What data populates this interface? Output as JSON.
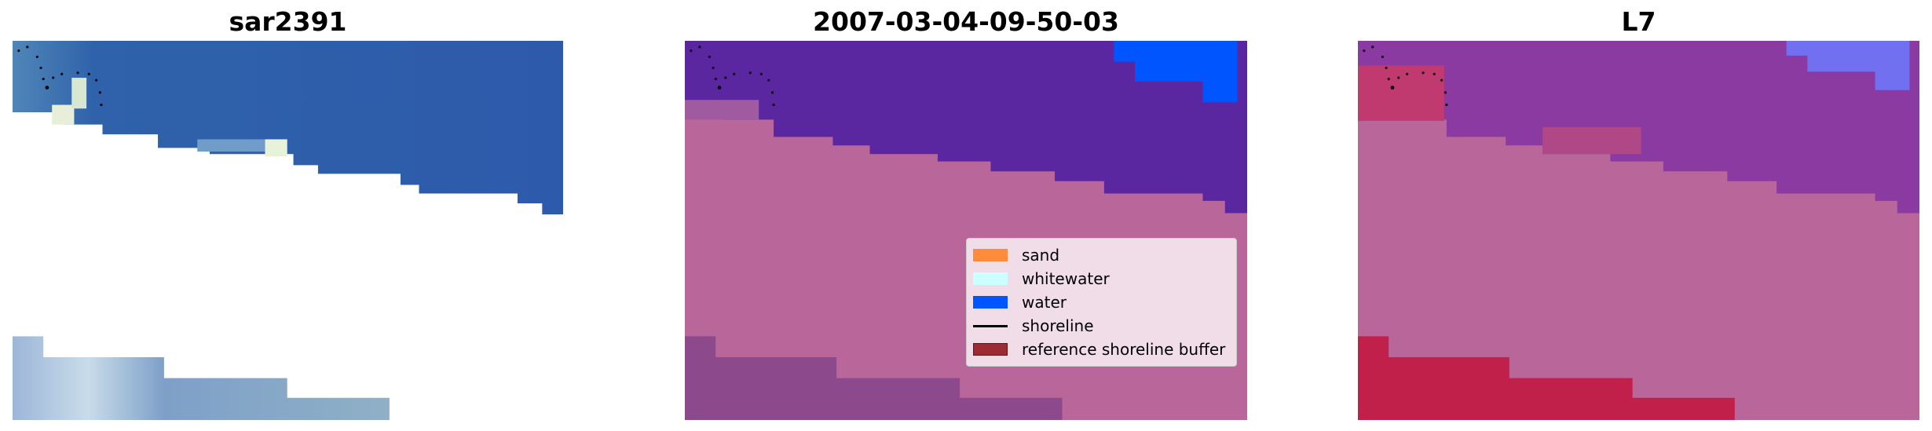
{
  "panels": [
    {
      "title": "sar2391"
    },
    {
      "title": "2007-03-04-09-50-03"
    },
    {
      "title": "L7"
    }
  ],
  "legend": {
    "items": [
      {
        "label": "sand",
        "color": "#ff8c3a",
        "kind": "patch"
      },
      {
        "label": "whitewater",
        "color": "#ccffff",
        "kind": "patch"
      },
      {
        "label": "water",
        "color": "#0055ff",
        "kind": "patch"
      },
      {
        "label": "shoreline",
        "color": "#000000",
        "kind": "line"
      },
      {
        "label": "reference shoreline buffer",
        "color": "#9b2c36",
        "kind": "patch"
      }
    ]
  },
  "colors": {
    "water_rgb": "#2f5faa",
    "land_class": "#b9679a",
    "other_class": "#5a27a0",
    "overlay_purple": "#8a3aa0",
    "buffer_red": "#c0204a"
  }
}
